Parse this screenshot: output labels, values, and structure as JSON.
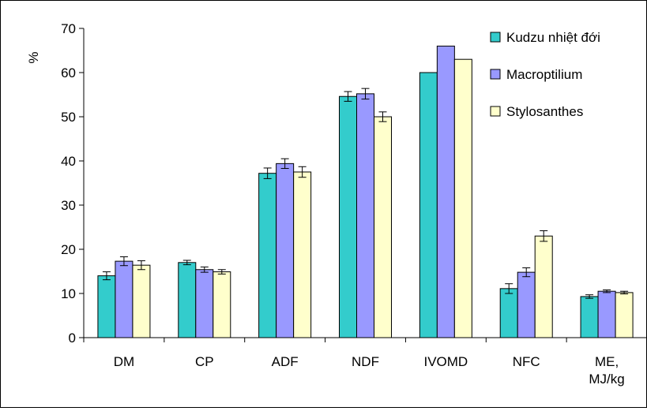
{
  "chart_data": {
    "type": "bar",
    "title": "",
    "xlabel": "",
    "ylabel": "%",
    "ylim": [
      0,
      70
    ],
    "yticks": [
      0,
      10,
      20,
      30,
      40,
      50,
      60,
      70
    ],
    "grid": false,
    "legend_position": "top-right",
    "categories": [
      [
        "DM"
      ],
      [
        "CP"
      ],
      [
        "ADF"
      ],
      [
        "NDF"
      ],
      [
        "IVOMD"
      ],
      [
        "NFC"
      ],
      [
        "ME,",
        "MJ/kg"
      ]
    ],
    "series": [
      {
        "name": "Kudzu nhiệt đới",
        "color": "#33CCCC",
        "values": [
          14.0,
          17.0,
          37.2,
          54.6,
          60.0,
          11.1,
          9.3
        ],
        "errors": [
          0.9,
          0.5,
          1.2,
          1.1,
          0.0,
          1.1,
          0.4
        ]
      },
      {
        "name": "Macroptilium",
        "color": "#9999FF",
        "values": [
          17.3,
          15.4,
          39.4,
          55.2,
          66.0,
          14.8,
          10.5
        ],
        "errors": [
          1.0,
          0.6,
          1.1,
          1.2,
          0.0,
          1.0,
          0.3
        ]
      },
      {
        "name": "Stylosanthes",
        "color": "#FFFFCC",
        "values": [
          16.4,
          14.9,
          37.5,
          50.0,
          63.0,
          23.0,
          10.2
        ],
        "errors": [
          1.0,
          0.5,
          1.2,
          1.1,
          0.0,
          1.2,
          0.3
        ]
      }
    ]
  }
}
